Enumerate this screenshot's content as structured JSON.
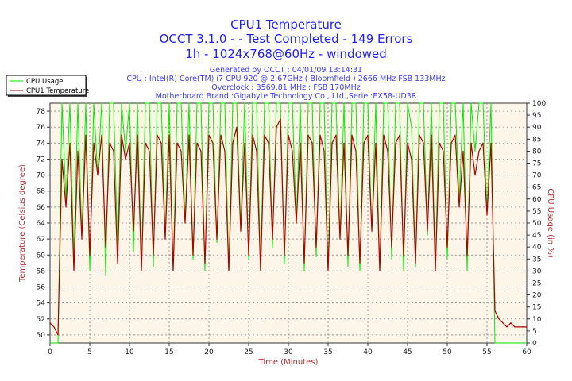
{
  "chart_data": {
    "type": "line",
    "title": "CPU1 Temperature",
    "subtitle_lines": [
      "OCCT 3.1.0 -  - Test Completed - 149 Errors",
      "1h - 1024x768@60Hz - windowed"
    ],
    "info_lines": [
      "Generated by OCCT : 04/01/09 13:14:31",
      "CPU : Intel(R) Core(TM) i7 CPU 920 @ 2.67GHz ( Bloomfield ) 2666 MHz FSB 133MHz",
      "Overclock : 3569.81 MHz ; FSB 170MHz",
      "Motherboard Brand :Gigabyte Technology Co., Ltd.,Serie :EX58-UD3R"
    ],
    "xlabel": "Time (Minutes)",
    "ylabel": "Temperature (Celsius degree)",
    "y2label": "CPU Usage (in %)",
    "xlim": [
      0,
      60
    ],
    "ylim": [
      49,
      79
    ],
    "y2lim": [
      0,
      100
    ],
    "xticks": [
      0,
      5,
      10,
      15,
      20,
      25,
      30,
      35,
      40,
      45,
      50,
      55,
      60
    ],
    "yticks": [
      50,
      52,
      54,
      56,
      58,
      60,
      62,
      64,
      66,
      68,
      70,
      72,
      74,
      76,
      78
    ],
    "y2ticks": [
      0,
      5,
      10,
      15,
      20,
      25,
      30,
      35,
      40,
      45,
      50,
      55,
      60,
      65,
      70,
      75,
      80,
      85,
      90,
      95,
      100
    ],
    "grid": true,
    "legend_position": "top-left",
    "x_start": 0,
    "x_step": 0.5,
    "series": [
      {
        "name": "CPU Usage",
        "axis": "right",
        "color": "#00ee00",
        "values": [
          0,
          0,
          0,
          100,
          60,
          100,
          35,
          100,
          45,
          100,
          30,
          100,
          70,
          100,
          28,
          100,
          100,
          40,
          100,
          80,
          100,
          38,
          100,
          30,
          100,
          100,
          32,
          100,
          100,
          45,
          100,
          30,
          100,
          100,
          50,
          100,
          35,
          100,
          100,
          30,
          100,
          100,
          42,
          100,
          100,
          30,
          100,
          100,
          48,
          100,
          35,
          100,
          100,
          30,
          100,
          100,
          40,
          100,
          100,
          33,
          100,
          100,
          50,
          100,
          30,
          100,
          100,
          36,
          100,
          100,
          30,
          100,
          100,
          44,
          100,
          32,
          100,
          100,
          30,
          100,
          100,
          47,
          100,
          30,
          100,
          100,
          35,
          100,
          100,
          30,
          100,
          90,
          32,
          100,
          100,
          45,
          100,
          30,
          100,
          100,
          35,
          100,
          100,
          60,
          100,
          30,
          100,
          80,
          100,
          100,
          55,
          100,
          0,
          0,
          0,
          0,
          0,
          0,
          0,
          0,
          0
        ]
      },
      {
        "name": "CPU1 Temperature",
        "axis": "left",
        "color": "#b00000",
        "values": [
          51.5,
          51,
          50,
          72,
          66,
          74,
          58,
          73,
          62,
          75,
          60,
          74,
          70,
          75,
          61,
          74,
          73,
          59,
          75,
          72,
          74,
          63,
          75,
          58,
          74,
          73,
          60,
          75,
          74,
          62,
          75,
          58,
          74,
          73,
          64,
          75,
          60,
          74,
          73,
          59,
          75,
          74,
          62,
          75,
          73,
          58,
          74,
          76,
          63,
          74,
          60,
          75,
          73,
          58,
          75,
          74,
          62,
          76,
          77,
          60,
          75,
          73,
          64,
          74,
          59,
          75,
          74,
          61,
          75,
          73,
          58,
          74,
          75,
          62,
          74,
          60,
          75,
          73,
          59,
          74,
          75,
          63,
          74,
          58,
          75,
          73,
          61,
          74,
          75,
          60,
          74,
          72,
          59,
          75,
          74,
          63,
          75,
          58,
          74,
          73,
          61,
          74,
          75,
          66,
          73,
          60,
          74,
          70,
          73,
          74,
          65,
          74,
          53,
          52,
          51.5,
          51,
          51.5,
          51,
          51,
          51,
          51
        ]
      }
    ]
  }
}
